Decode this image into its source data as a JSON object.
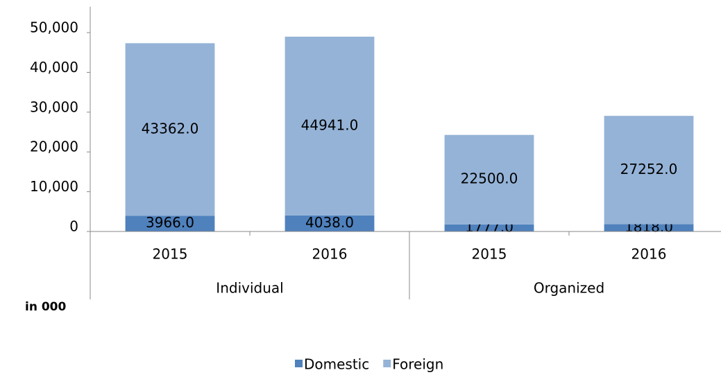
{
  "chart_data": {
    "type": "stacked_bar",
    "categories": [
      "2015",
      "2016",
      "2015",
      "2016"
    ],
    "groups": [
      "Individual",
      "Organized"
    ],
    "series": [
      {
        "name": "Domestic",
        "color": "#4f81bd",
        "values": [
          3966,
          4038,
          1777,
          1818
        ],
        "value_labels": [
          "3966.0",
          "4038.0",
          "1777.0",
          "1818.0"
        ]
      },
      {
        "name": "Foreign",
        "color": "#95b3d7",
        "values": [
          43362,
          44941,
          22500,
          27252
        ],
        "value_labels": [
          "43362.0",
          "44941.0",
          "22500.0",
          "27252.0"
        ]
      }
    ],
    "ylim": [
      0,
      56000
    ],
    "yticks": [
      0,
      {
        "value": 10000,
        "label": "10,000"
      },
      {
        "value": 20000,
        "label": "20,000"
      },
      {
        "value": 30000,
        "label": "30,000"
      },
      {
        "value": 40000,
        "label": "40,000"
      },
      {
        "value": 50000,
        "label": "50,000"
      }
    ],
    "unit_note": "in 000",
    "grid": false,
    "legend": "bottom"
  }
}
